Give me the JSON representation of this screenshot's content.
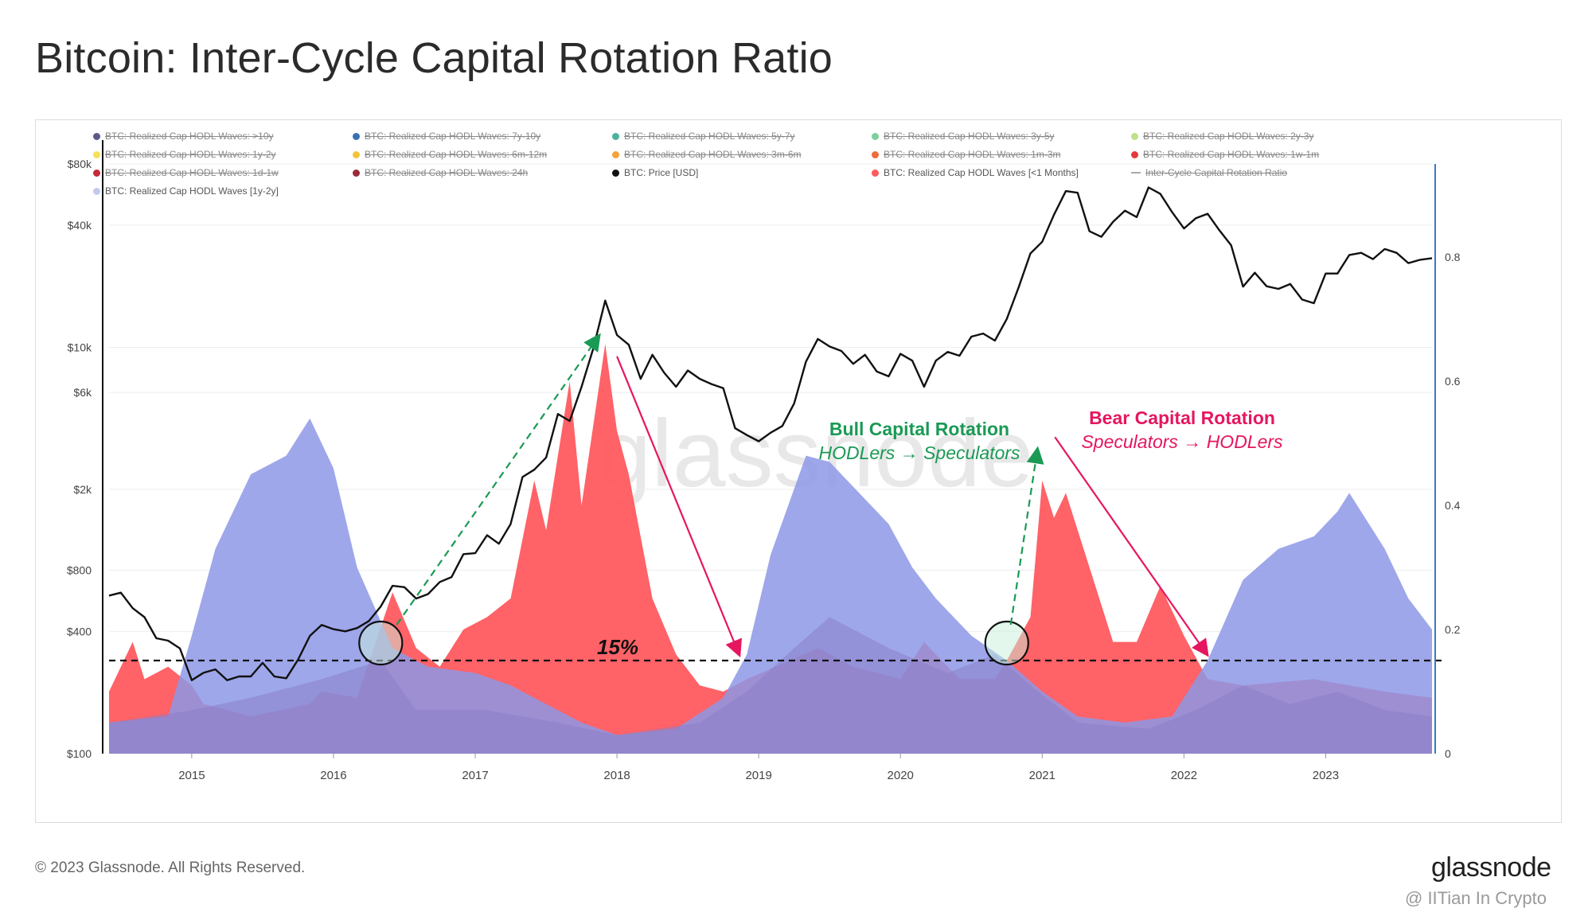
{
  "title": "Bitcoin: Inter-Cycle Capital Rotation Ratio",
  "footer": {
    "copyright": "© 2023 Glassnode. All Rights Reserved.",
    "logo": "glassnode",
    "watermark": "@ IITian In Crypto"
  },
  "colors": {
    "price": "#111111",
    "speculators": "#ff5a5f",
    "hodlers": "#8d98e6",
    "bull_arrow": "#1a9a55",
    "bear_arrow": "#e5165f",
    "right_axis": "#3b78c4"
  },
  "legend": [
    {
      "label": "BTC: Realized Cap HODL Waves: >10y",
      "color": "#5b5b8a",
      "active": false
    },
    {
      "label": "BTC: Realized Cap HODL Waves: 7y-10y",
      "color": "#3b6fb6",
      "active": false
    },
    {
      "label": "BTC: Realized Cap HODL Waves: 5y-7y",
      "color": "#4bb39b",
      "active": false
    },
    {
      "label": "BTC: Realized Cap HODL Waves: 3y-5y",
      "color": "#7fce9c",
      "active": false
    },
    {
      "label": "BTC: Realized Cap HODL Waves: 2y-3y",
      "color": "#bfe08a",
      "active": false
    },
    {
      "label": "BTC: Realized Cap HODL Waves: 1y-2y",
      "color": "#f3e15a",
      "active": false
    },
    {
      "label": "BTC: Realized Cap HODL Waves: 6m-12m",
      "color": "#f1c43a",
      "active": false
    },
    {
      "label": "BTC: Realized Cap HODL Waves: 3m-6m",
      "color": "#f3a33a",
      "active": false
    },
    {
      "label": "BTC: Realized Cap HODL Waves: 1m-3m",
      "color": "#ef6b3b",
      "active": false
    },
    {
      "label": "BTC: Realized Cap HODL Waves: 1w-1m",
      "color": "#e33a3a",
      "active": false
    },
    {
      "label": "BTC: Realized Cap HODL Waves: 1d-1w",
      "color": "#c42a3a",
      "active": false
    },
    {
      "label": "BTC: Realized Cap HODL Waves: 24h",
      "color": "#9a2a3a",
      "active": false
    },
    {
      "label": "BTC: Price [USD]",
      "color": "#111111",
      "active": true
    },
    {
      "label": "BTC: Realized Cap HODL Waves [<1 Months]",
      "color": "#ff5a5f",
      "active": true
    },
    {
      "label": "Inter-Cycle Capital Rotation Ratio",
      "color": "#aaaaaa",
      "active": false,
      "line": true
    },
    {
      "label": "BTC: Realized Cap HODL Waves [1y-2y]",
      "color": "#c3c8ef",
      "active": true
    }
  ],
  "annotations": {
    "threshold_label": "15%",
    "bull_title": "Bull Capital Rotation",
    "bull_sub": "HODLers → Speculators",
    "bear_title": "Bear Capital Rotation",
    "bear_sub": "Speculators → HODLers",
    "watermark": "glassnode"
  },
  "chart_data": {
    "type": "area",
    "x_ticks": [
      "2015",
      "2016",
      "2017",
      "2018",
      "2019",
      "2020",
      "2021",
      "2022",
      "2023"
    ],
    "xlim": [
      "2014-06",
      "2023-10"
    ],
    "y_left": {
      "scale": "log",
      "ticks": [
        "$100",
        "$400",
        "$800",
        "$2k",
        "$6k",
        "$10k",
        "$40k",
        "$80k"
      ],
      "ylim": [
        100,
        80000
      ]
    },
    "y_right": {
      "scale": "linear",
      "ticks": [
        "0",
        "0.2",
        "0.4",
        "0.6",
        "0.8"
      ],
      "ylim": [
        0,
        0.95
      ]
    },
    "threshold": 0.15,
    "series": [
      {
        "name": "BTC: Price [USD]",
        "axis": "left",
        "points": [
          [
            "2014-06",
            600
          ],
          [
            "2014-07",
            620
          ],
          [
            "2014-08",
            520
          ],
          [
            "2014-09",
            470
          ],
          [
            "2014-10",
            370
          ],
          [
            "2014-11",
            360
          ],
          [
            "2014-12",
            330
          ],
          [
            "2015-01",
            230
          ],
          [
            "2015-02",
            250
          ],
          [
            "2015-03",
            260
          ],
          [
            "2015-04",
            230
          ],
          [
            "2015-05",
            240
          ],
          [
            "2015-06",
            240
          ],
          [
            "2015-07",
            280
          ],
          [
            "2015-08",
            240
          ],
          [
            "2015-09",
            235
          ],
          [
            "2015-10",
            290
          ],
          [
            "2015-11",
            380
          ],
          [
            "2015-12",
            430
          ],
          [
            "2016-01",
            410
          ],
          [
            "2016-02",
            400
          ],
          [
            "2016-03",
            415
          ],
          [
            "2016-04",
            450
          ],
          [
            "2016-05",
            530
          ],
          [
            "2016-06",
            670
          ],
          [
            "2016-07",
            660
          ],
          [
            "2016-08",
            580
          ],
          [
            "2016-09",
            610
          ],
          [
            "2016-10",
            700
          ],
          [
            "2016-11",
            740
          ],
          [
            "2016-12",
            960
          ],
          [
            "2017-01",
            970
          ],
          [
            "2017-02",
            1190
          ],
          [
            "2017-03",
            1080
          ],
          [
            "2017-04",
            1350
          ],
          [
            "2017-05",
            2300
          ],
          [
            "2017-06",
            2500
          ],
          [
            "2017-07",
            2870
          ],
          [
            "2017-08",
            4700
          ],
          [
            "2017-09",
            4340
          ],
          [
            "2017-10",
            6400
          ],
          [
            "2017-11",
            9900
          ],
          [
            "2017-12",
            17000
          ],
          [
            "2018-01",
            11500
          ],
          [
            "2018-02",
            10300
          ],
          [
            "2018-03",
            7000
          ],
          [
            "2018-04",
            9200
          ],
          [
            "2018-05",
            7500
          ],
          [
            "2018-06",
            6400
          ],
          [
            "2018-07",
            7700
          ],
          [
            "2018-08",
            7000
          ],
          [
            "2018-09",
            6600
          ],
          [
            "2018-10",
            6300
          ],
          [
            "2018-11",
            4000
          ],
          [
            "2018-12",
            3700
          ],
          [
            "2019-01",
            3450
          ],
          [
            "2019-02",
            3800
          ],
          [
            "2019-03",
            4100
          ],
          [
            "2019-04",
            5300
          ],
          [
            "2019-05",
            8500
          ],
          [
            "2019-06",
            11000
          ],
          [
            "2019-07",
            10100
          ],
          [
            "2019-08",
            9600
          ],
          [
            "2019-09",
            8300
          ],
          [
            "2019-10",
            9200
          ],
          [
            "2019-11",
            7600
          ],
          [
            "2019-12",
            7200
          ],
          [
            "2020-01",
            9300
          ],
          [
            "2020-02",
            8600
          ],
          [
            "2020-03",
            6400
          ],
          [
            "2020-04",
            8600
          ],
          [
            "2020-05",
            9500
          ],
          [
            "2020-06",
            9100
          ],
          [
            "2020-07",
            11300
          ],
          [
            "2020-08",
            11700
          ],
          [
            "2020-09",
            10800
          ],
          [
            "2020-10",
            13800
          ],
          [
            "2020-11",
            19700
          ],
          [
            "2020-12",
            29000
          ],
          [
            "2021-01",
            33100
          ],
          [
            "2021-02",
            45000
          ],
          [
            "2021-03",
            58800
          ],
          [
            "2021-04",
            57700
          ],
          [
            "2021-05",
            37300
          ],
          [
            "2021-06",
            35000
          ],
          [
            "2021-07",
            41500
          ],
          [
            "2021-08",
            47100
          ],
          [
            "2021-09",
            43800
          ],
          [
            "2021-10",
            61300
          ],
          [
            "2021-11",
            57000
          ],
          [
            "2021-12",
            46300
          ],
          [
            "2022-01",
            38500
          ],
          [
            "2022-02",
            43200
          ],
          [
            "2022-03",
            45500
          ],
          [
            "2022-04",
            37700
          ],
          [
            "2022-05",
            31800
          ],
          [
            "2022-06",
            19900
          ],
          [
            "2022-07",
            23300
          ],
          [
            "2022-08",
            20000
          ],
          [
            "2022-09",
            19400
          ],
          [
            "2022-10",
            20500
          ],
          [
            "2022-11",
            17200
          ],
          [
            "2022-12",
            16500
          ],
          [
            "2023-01",
            23100
          ],
          [
            "2023-02",
            23100
          ],
          [
            "2023-03",
            28500
          ],
          [
            "2023-04",
            29200
          ],
          [
            "2023-05",
            27200
          ],
          [
            "2023-06",
            30500
          ],
          [
            "2023-07",
            29200
          ],
          [
            "2023-08",
            26000
          ],
          [
            "2023-09",
            27000
          ],
          [
            "2023-10",
            27500
          ]
        ]
      },
      {
        "name": "BTC: Realized Cap HODL Waves [<1 Months]",
        "axis": "right",
        "points": [
          [
            "2014-06",
            0.1
          ],
          [
            "2014-08",
            0.18
          ],
          [
            "2014-09",
            0.12
          ],
          [
            "2014-11",
            0.14
          ],
          [
            "2015-01",
            0.11
          ],
          [
            "2015-02",
            0.08
          ],
          [
            "2015-06",
            0.06
          ],
          [
            "2015-11",
            0.08
          ],
          [
            "2015-12",
            0.1
          ],
          [
            "2016-03",
            0.09
          ],
          [
            "2016-06",
            0.26
          ],
          [
            "2016-08",
            0.17
          ],
          [
            "2016-10",
            0.14
          ],
          [
            "2016-12",
            0.2
          ],
          [
            "2017-02",
            0.22
          ],
          [
            "2017-04",
            0.25
          ],
          [
            "2017-06",
            0.44
          ],
          [
            "2017-07",
            0.36
          ],
          [
            "2017-09",
            0.6
          ],
          [
            "2017-10",
            0.4
          ],
          [
            "2017-12",
            0.66
          ],
          [
            "2018-01",
            0.52
          ],
          [
            "2018-02",
            0.45
          ],
          [
            "2018-04",
            0.25
          ],
          [
            "2018-06",
            0.16
          ],
          [
            "2018-08",
            0.11
          ],
          [
            "2018-10",
            0.1
          ],
          [
            "2018-12",
            0.12
          ],
          [
            "2019-06",
            0.17
          ],
          [
            "2019-09",
            0.14
          ],
          [
            "2020-01",
            0.12
          ],
          [
            "2020-03",
            0.18
          ],
          [
            "2020-06",
            0.12
          ],
          [
            "2020-09",
            0.12
          ],
          [
            "2020-10",
            0.15
          ],
          [
            "2020-12",
            0.22
          ],
          [
            "2021-01",
            0.44
          ],
          [
            "2021-02",
            0.38
          ],
          [
            "2021-03",
            0.42
          ],
          [
            "2021-05",
            0.3
          ],
          [
            "2021-07",
            0.18
          ],
          [
            "2021-09",
            0.18
          ],
          [
            "2021-11",
            0.27
          ],
          [
            "2022-01",
            0.19
          ],
          [
            "2022-03",
            0.12
          ],
          [
            "2022-06",
            0.11
          ],
          [
            "2022-12",
            0.12
          ],
          [
            "2023-06",
            0.1
          ],
          [
            "2023-10",
            0.09
          ]
        ]
      },
      {
        "name": "BTC: Realized Cap HODL Waves [1y-2y]",
        "axis": "right",
        "points": [
          [
            "2014-06",
            0.05
          ],
          [
            "2014-11",
            0.06
          ],
          [
            "2015-01",
            0.19
          ],
          [
            "2015-03",
            0.33
          ],
          [
            "2015-06",
            0.45
          ],
          [
            "2015-09",
            0.48
          ],
          [
            "2015-11",
            0.54
          ],
          [
            "2016-01",
            0.46
          ],
          [
            "2016-03",
            0.3
          ],
          [
            "2016-06",
            0.17
          ],
          [
            "2016-09",
            0.14
          ],
          [
            "2017-01",
            0.13
          ],
          [
            "2017-04",
            0.11
          ],
          [
            "2017-07",
            0.08
          ],
          [
            "2017-10",
            0.05
          ],
          [
            "2018-01",
            0.03
          ],
          [
            "2018-06",
            0.04
          ],
          [
            "2018-10",
            0.09
          ],
          [
            "2018-12",
            0.16
          ],
          [
            "2019-02",
            0.32
          ],
          [
            "2019-05",
            0.48
          ],
          [
            "2019-07",
            0.47
          ],
          [
            "2019-09",
            0.43
          ],
          [
            "2019-12",
            0.37
          ],
          [
            "2020-02",
            0.3
          ],
          [
            "2020-04",
            0.25
          ],
          [
            "2020-07",
            0.19
          ],
          [
            "2020-10",
            0.15
          ],
          [
            "2021-01",
            0.1
          ],
          [
            "2021-04",
            0.06
          ],
          [
            "2021-08",
            0.05
          ],
          [
            "2021-12",
            0.06
          ],
          [
            "2022-03",
            0.15
          ],
          [
            "2022-06",
            0.28
          ],
          [
            "2022-09",
            0.33
          ],
          [
            "2022-12",
            0.35
          ],
          [
            "2023-02",
            0.39
          ],
          [
            "2023-03",
            0.42
          ],
          [
            "2023-06",
            0.33
          ],
          [
            "2023-08",
            0.25
          ],
          [
            "2023-10",
            0.2
          ]
        ]
      },
      {
        "name": "Inter-Cycle Capital Rotation Ratio",
        "axis": "right",
        "points": [
          [
            "2014-06",
            0.05
          ],
          [
            "2015-01",
            0.07
          ],
          [
            "2015-06",
            0.09
          ],
          [
            "2015-12",
            0.12
          ],
          [
            "2016-05",
            0.15
          ],
          [
            "2016-08",
            0.07
          ],
          [
            "2017-02",
            0.07
          ],
          [
            "2017-08",
            0.05
          ],
          [
            "2018-01",
            0.03
          ],
          [
            "2018-08",
            0.05
          ],
          [
            "2018-12",
            0.1
          ],
          [
            "2019-04",
            0.17
          ],
          [
            "2019-07",
            0.22
          ],
          [
            "2019-12",
            0.17
          ],
          [
            "2020-05",
            0.13
          ],
          [
            "2020-09",
            0.16
          ],
          [
            "2020-12",
            0.11
          ],
          [
            "2021-04",
            0.05
          ],
          [
            "2021-10",
            0.04
          ],
          [
            "2022-02",
            0.07
          ],
          [
            "2022-06",
            0.11
          ],
          [
            "2022-10",
            0.08
          ],
          [
            "2023-02",
            0.1
          ],
          [
            "2023-06",
            0.07
          ],
          [
            "2023-10",
            0.06
          ]
        ]
      }
    ]
  }
}
